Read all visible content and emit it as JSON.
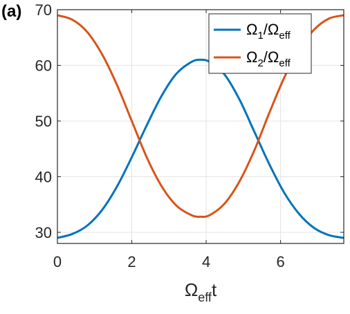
{
  "panel_label": "(a)",
  "chart_data": {
    "type": "line",
    "xlabel": {
      "main": "Ω",
      "sub": "eff",
      "tail": "t"
    },
    "xlim": [
      0,
      7.7
    ],
    "ylim": [
      28,
      70
    ],
    "xticks": [
      0,
      2,
      4,
      6
    ],
    "yticks": [
      30,
      40,
      50,
      60,
      70
    ],
    "grid": true,
    "legend_position": "top-right",
    "series": [
      {
        "name": "Ω1/Ωeff",
        "label_parts": {
          "a": "Ω",
          "a_sub": "1",
          "b": "/Ω",
          "b_sub": "eff"
        },
        "color": "#0072BD",
        "x": [
          0,
          0.4,
          0.8,
          1.2,
          1.6,
          2.0,
          2.4,
          2.8,
          3.2,
          3.6,
          3.85,
          4.1,
          4.5,
          4.9,
          5.3,
          5.7,
          6.1,
          6.5,
          6.9,
          7.3,
          7.7
        ],
        "y": [
          29.0,
          29.7,
          31.2,
          34.0,
          38.2,
          43.5,
          49.2,
          54.5,
          58.5,
          60.6,
          61.0,
          60.6,
          58.3,
          53.8,
          48.0,
          42.2,
          37.1,
          33.3,
          30.8,
          29.5,
          29.0
        ]
      },
      {
        "name": "Ω2/Ωeff",
        "label_parts": {
          "a": "Ω",
          "a_sub": "2",
          "b": "/Ω",
          "b_sub": "eff"
        },
        "color": "#D95319",
        "x": [
          0,
          0.4,
          0.8,
          1.2,
          1.6,
          2.0,
          2.4,
          2.8,
          3.2,
          3.6,
          3.85,
          4.1,
          4.5,
          4.9,
          5.3,
          5.7,
          6.1,
          6.5,
          6.9,
          7.3,
          7.7
        ],
        "y": [
          69.0,
          68.2,
          66.0,
          62.0,
          56.5,
          50.0,
          43.5,
          38.3,
          34.8,
          33.1,
          32.8,
          33.1,
          35.2,
          39.2,
          44.8,
          51.5,
          57.8,
          62.9,
          66.4,
          68.4,
          69.0
        ]
      }
    ]
  }
}
